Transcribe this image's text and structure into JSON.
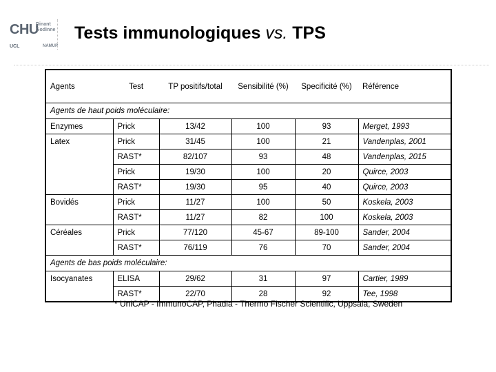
{
  "logo": {
    "main": "CHU",
    "sub1": "Dinant",
    "sub2": "Godinne",
    "ucl": "UCL",
    "namur": "NAMUR"
  },
  "slide": {
    "title_main": "Tests immunologiques ",
    "title_vs": "vs.",
    "title_end": " TPS"
  },
  "table": {
    "headers": [
      "Agents",
      "Test",
      "TP positifs/total",
      "Sensibilité (%)",
      "Specificité (%)",
      "Référence"
    ],
    "sections": [
      {
        "label": "Agents de haut poids moléculaire:",
        "rows": [
          {
            "agent": "Enzymes",
            "test": "Prick",
            "tp": "13/42",
            "sens": "100",
            "spec": "93",
            "ref": "Merget, 1993"
          },
          {
            "agent": "Latex",
            "test": "Prick",
            "tp": "31/45",
            "sens": "100",
            "spec": "21",
            "ref": "Vandenplas, 2001"
          },
          {
            "agent": "",
            "test": "RAST*",
            "tp": "82/107",
            "sens": "93",
            "spec": "48",
            "ref": "Vandenplas, 2015"
          },
          {
            "agent": "",
            "test": "Prick",
            "tp": "19/30",
            "sens": "100",
            "spec": "20",
            "ref": "Quirce, 2003"
          },
          {
            "agent": "",
            "test": "RAST*",
            "tp": "19/30",
            "sens": "95",
            "spec": "40",
            "ref": "Quirce, 2003"
          },
          {
            "agent": "Bovidés",
            "test": "Prick",
            "tp": "11/27",
            "sens": "100",
            "spec": "50",
            "ref": "Koskela, 2003"
          },
          {
            "agent": "",
            "test": "RAST*",
            "tp": "11/27",
            "sens": "82",
            "spec": "100",
            "ref": "Koskela, 2003"
          },
          {
            "agent": "Céréales",
            "test": "Prick",
            "tp": "77/120",
            "sens": "45-67",
            "spec": "89-100",
            "ref": "Sander, 2004"
          },
          {
            "agent": "",
            "test": "RAST*",
            "tp": "76/119",
            "sens": "76",
            "spec": "70",
            "ref": "Sander, 2004"
          }
        ]
      },
      {
        "label": "Agents de bas poids moléculaire:",
        "rows": [
          {
            "agent": "Isocyanates",
            "test": "ELISA",
            "tp": "29/62",
            "sens": "31",
            "spec": "97",
            "ref": "Cartier, 1989"
          },
          {
            "agent": "",
            "test": "RAST*",
            "tp": "22/70",
            "sens": "28",
            "spec": "92",
            "ref": "Tee, 1998"
          }
        ]
      }
    ]
  },
  "footnote": "* UniCAP - ImmunoCAP, Phadia - Thermo Fischer Scientific, Uppsala, Sweden"
}
